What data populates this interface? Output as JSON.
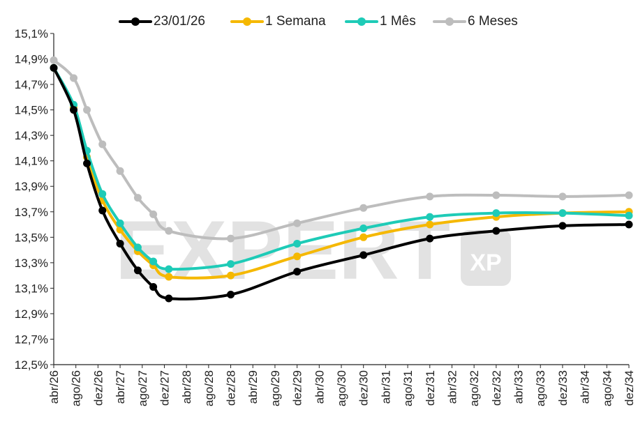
{
  "chart_data": {
    "type": "line",
    "title": "",
    "xlabel": "",
    "ylabel": "",
    "categories": [
      "abr/26",
      "ago/26",
      "dez/26",
      "abr/27",
      "ago/27",
      "dez/27",
      "abr/28",
      "ago/28",
      "dez/28",
      "abr/29",
      "ago/29",
      "dez/29",
      "abr/30",
      "ago/30",
      "dez/30",
      "abr/31",
      "ago/31",
      "dez/31",
      "abr/32",
      "ago/32",
      "dez/32",
      "abr/33",
      "ago/33",
      "dez/33",
      "abr/34",
      "ago/34",
      "dez/34"
    ],
    "ylim": [
      12.5,
      15.1
    ],
    "yticks": [
      "12,5%",
      "12,7%",
      "12,9%",
      "13,1%",
      "13,3%",
      "13,5%",
      "13,7%",
      "13,9%",
      "14,1%",
      "14,3%",
      "14,5%",
      "14,7%",
      "14,9%",
      "15,1%"
    ],
    "ytick_values": [
      12.5,
      12.7,
      12.9,
      13.1,
      13.3,
      13.5,
      13.7,
      13.9,
      14.1,
      14.3,
      14.5,
      14.7,
      14.9,
      15.1
    ],
    "legend_position": "top-center",
    "series": [
      {
        "name": "23/01/26",
        "color": "#000000",
        "x": [
          0,
          0.9,
          1.5,
          2.2,
          3.0,
          3.8,
          4.5,
          5.2,
          8.0,
          11.0,
          14.0,
          17.0,
          20.0,
          23.0,
          26.0
        ],
        "values": [
          14.83,
          14.5,
          14.08,
          13.71,
          13.45,
          13.24,
          13.11,
          13.02,
          13.05,
          13.23,
          13.36,
          13.49,
          13.55,
          13.59,
          13.6
        ]
      },
      {
        "name": "1 Semana",
        "color": "#f5b800",
        "x": [
          0,
          0.9,
          1.5,
          2.2,
          3.0,
          3.8,
          4.5,
          5.2,
          8.0,
          11.0,
          14.0,
          17.0,
          20.0,
          23.0,
          26.0
        ],
        "values": [
          14.83,
          14.52,
          14.13,
          13.79,
          13.56,
          13.39,
          13.28,
          13.19,
          13.2,
          13.35,
          13.5,
          13.6,
          13.66,
          13.69,
          13.7
        ]
      },
      {
        "name": "1 Mês",
        "color": "#1ecbb7",
        "x": [
          0,
          0.9,
          1.5,
          2.2,
          3.0,
          3.8,
          4.5,
          5.2,
          8.0,
          11.0,
          14.0,
          17.0,
          20.0,
          23.0,
          26.0
        ],
        "values": [
          14.83,
          14.54,
          14.18,
          13.84,
          13.61,
          13.42,
          13.31,
          13.25,
          13.29,
          13.45,
          13.57,
          13.66,
          13.69,
          13.69,
          13.67
        ]
      },
      {
        "name": "6 Meses",
        "color": "#bdbdbd",
        "x": [
          0,
          0.9,
          1.5,
          2.2,
          3.0,
          3.8,
          4.5,
          5.2,
          8.0,
          11.0,
          14.0,
          17.0,
          20.0,
          23.0,
          26.0
        ],
        "values": [
          14.89,
          14.75,
          14.5,
          14.23,
          14.02,
          13.81,
          13.68,
          13.55,
          13.49,
          13.61,
          13.73,
          13.82,
          13.83,
          13.82,
          13.83
        ]
      }
    ]
  },
  "watermark": {
    "text": "EXPERT",
    "badge": "XP"
  }
}
